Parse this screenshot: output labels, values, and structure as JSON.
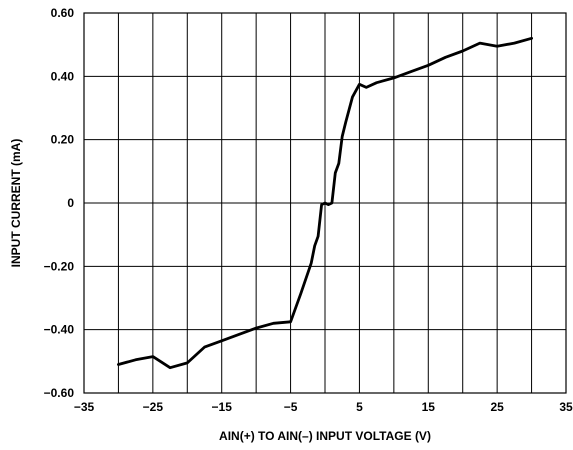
{
  "chart_data": {
    "type": "line",
    "title": "",
    "xlabel": "AIN(+) TO AIN(–) INPUT VOLTAGE (V)",
    "ylabel": "INPUT CURRENT (mA)",
    "xlim": [
      -35,
      35
    ],
    "ylim": [
      -0.6,
      0.6
    ],
    "xticks": [
      -35,
      -25,
      -15,
      -5,
      5,
      15,
      25,
      35
    ],
    "xtick_labels": [
      "−35",
      "−25",
      "−15",
      "−5",
      "5",
      "15",
      "25",
      "35"
    ],
    "yticks": [
      0.6,
      0.4,
      0.2,
      0,
      -0.2,
      -0.4,
      -0.6
    ],
    "ytick_labels": [
      "0.60",
      "0.40",
      "0.20",
      "0",
      "−0.20",
      "−0.40",
      "−0.60"
    ],
    "vertical_grid_x": [
      -30,
      -25,
      -20,
      -15,
      -10,
      -5,
      0,
      5,
      10,
      15,
      20,
      25,
      30
    ],
    "grid": true,
    "series": [
      {
        "color": "#000000",
        "x": [
          -30,
          -27.5,
          -25,
          -22.5,
          -20,
          -17.5,
          -15,
          -12.5,
          -10,
          -7.5,
          -5,
          -3.5,
          -2,
          -1.5,
          -1,
          -0.5,
          0,
          0.5,
          1,
          1.5,
          2,
          2.5,
          3,
          4,
          5,
          6,
          7.5,
          10,
          12.5,
          15,
          17.5,
          20,
          22.5,
          25,
          27.5,
          30
        ],
        "y": [
          -0.51,
          -0.495,
          -0.485,
          -0.52,
          -0.505,
          -0.455,
          -0.435,
          -0.415,
          -0.395,
          -0.38,
          -0.375,
          -0.285,
          -0.19,
          -0.135,
          -0.105,
          -0.005,
          0.0,
          -0.005,
          0.0,
          0.095,
          0.125,
          0.21,
          0.255,
          0.335,
          0.375,
          0.365,
          0.38,
          0.395,
          0.415,
          0.435,
          0.46,
          0.48,
          0.505,
          0.495,
          0.505,
          0.52
        ]
      }
    ]
  }
}
